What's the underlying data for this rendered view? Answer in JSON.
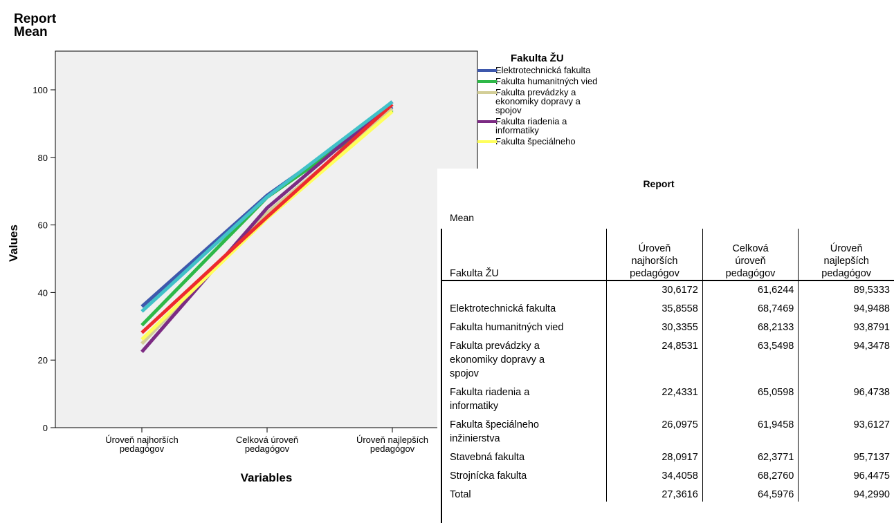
{
  "header": {
    "line1": "Report",
    "line2": "Mean"
  },
  "chart_data": {
    "type": "line",
    "xlabel": "Variables",
    "ylabel": "Values",
    "ylim": [
      0,
      110
    ],
    "yticks": [
      0,
      20,
      40,
      60,
      80,
      100
    ],
    "categories": [
      "Úroveň najhorších pedagógov",
      "Celková úroveň pedagógov",
      "Úroveň najlepších pedagógov"
    ],
    "category_lines": [
      [
        "Úroveň najhorších",
        "pedagógov"
      ],
      [
        "Celková úroveň",
        "pedagógov"
      ],
      [
        "Úroveň najlepších",
        "pedagógov"
      ]
    ],
    "legend_title": "Fakulta ŽU",
    "series": [
      {
        "name": "Elektrotechnická fakulta",
        "color": "#3E58AC",
        "values": [
          35.8558,
          68.7469,
          94.9488
        ]
      },
      {
        "name": "Fakulta humanitných vied",
        "color": "#2EB848",
        "values": [
          30.3355,
          68.2133,
          93.8791
        ]
      },
      {
        "name": "Fakulta prevádzky a ekonomiky dopravy a spojov",
        "color": "#D3CE97",
        "values": [
          24.8531,
          63.5498,
          94.3478
        ]
      },
      {
        "name": "Fakulta riadenia a informatiky",
        "color": "#7C2B83",
        "values": [
          22.4331,
          65.0598,
          96.4738
        ]
      },
      {
        "name": "Fakulta špeciálneho inžinierstva",
        "color": "#FFFF5C",
        "values": [
          26.0975,
          61.9458,
          93.6127
        ]
      },
      {
        "name": "Stavebná fakulta",
        "color": "#ED2A2E",
        "values": [
          28.0917,
          62.3771,
          95.7137
        ]
      },
      {
        "name": "Strojnícka fakulta",
        "color": "#41C1C8",
        "values": [
          34.4058,
          68.276,
          96.4475
        ]
      }
    ]
  },
  "legend": {
    "title": "Fakulta ŽU",
    "items": [
      {
        "lines": [
          "Elektrotechnická fakulta"
        ],
        "color": "#3E58AC"
      },
      {
        "lines": [
          "Fakulta humanitných vied"
        ],
        "color": "#2EB848"
      },
      {
        "lines": [
          "Fakulta prevádzky a",
          "ekonomiky dopravy a",
          "spojov"
        ],
        "color": "#D3CE97"
      },
      {
        "lines": [
          "Fakulta riadenia a",
          "informatiky"
        ],
        "color": "#7C2B83"
      },
      {
        "lines": [
          "Fakulta špeciálneho"
        ],
        "color": "#FFFF5C"
      }
    ]
  },
  "report": {
    "title": "Report",
    "subtitle": "Mean",
    "columns": [
      [
        "Fakulta ŽU"
      ],
      [
        "Úroveň",
        "najhorších",
        "pedagógov"
      ],
      [
        "Celková",
        "úroveň",
        "pedagógov"
      ],
      [
        "Úroveň",
        "najlepších",
        "pedagógov"
      ]
    ],
    "rows": [
      {
        "label": [
          ""
        ],
        "values": [
          "30,6172",
          "61,6244",
          "89,5333"
        ]
      },
      {
        "label": [
          "Elektrotechnická fakulta"
        ],
        "values": [
          "35,8558",
          "68,7469",
          "94,9488"
        ]
      },
      {
        "label": [
          "Fakulta humanitných vied"
        ],
        "values": [
          "30,3355",
          "68,2133",
          "93,8791"
        ]
      },
      {
        "label": [
          "Fakulta prevádzky a",
          "ekonomiky dopravy a",
          "spojov"
        ],
        "values": [
          "24,8531",
          "63,5498",
          "94,3478"
        ]
      },
      {
        "label": [
          "Fakulta riadenia a",
          "informatiky"
        ],
        "values": [
          "22,4331",
          "65,0598",
          "96,4738"
        ]
      },
      {
        "label": [
          "Fakulta špeciálneho",
          "inžinierstva"
        ],
        "values": [
          "26,0975",
          "61,9458",
          "93,6127"
        ]
      },
      {
        "label": [
          "Stavebná fakulta"
        ],
        "values": [
          "28,0917",
          "62,3771",
          "95,7137"
        ]
      },
      {
        "label": [
          "Strojnícka fakulta"
        ],
        "values": [
          "34,4058",
          "68,2760",
          "96,4475"
        ]
      },
      {
        "label": [
          "Total"
        ],
        "values": [
          "27,3616",
          "64,5976",
          "94,2990"
        ]
      }
    ]
  }
}
